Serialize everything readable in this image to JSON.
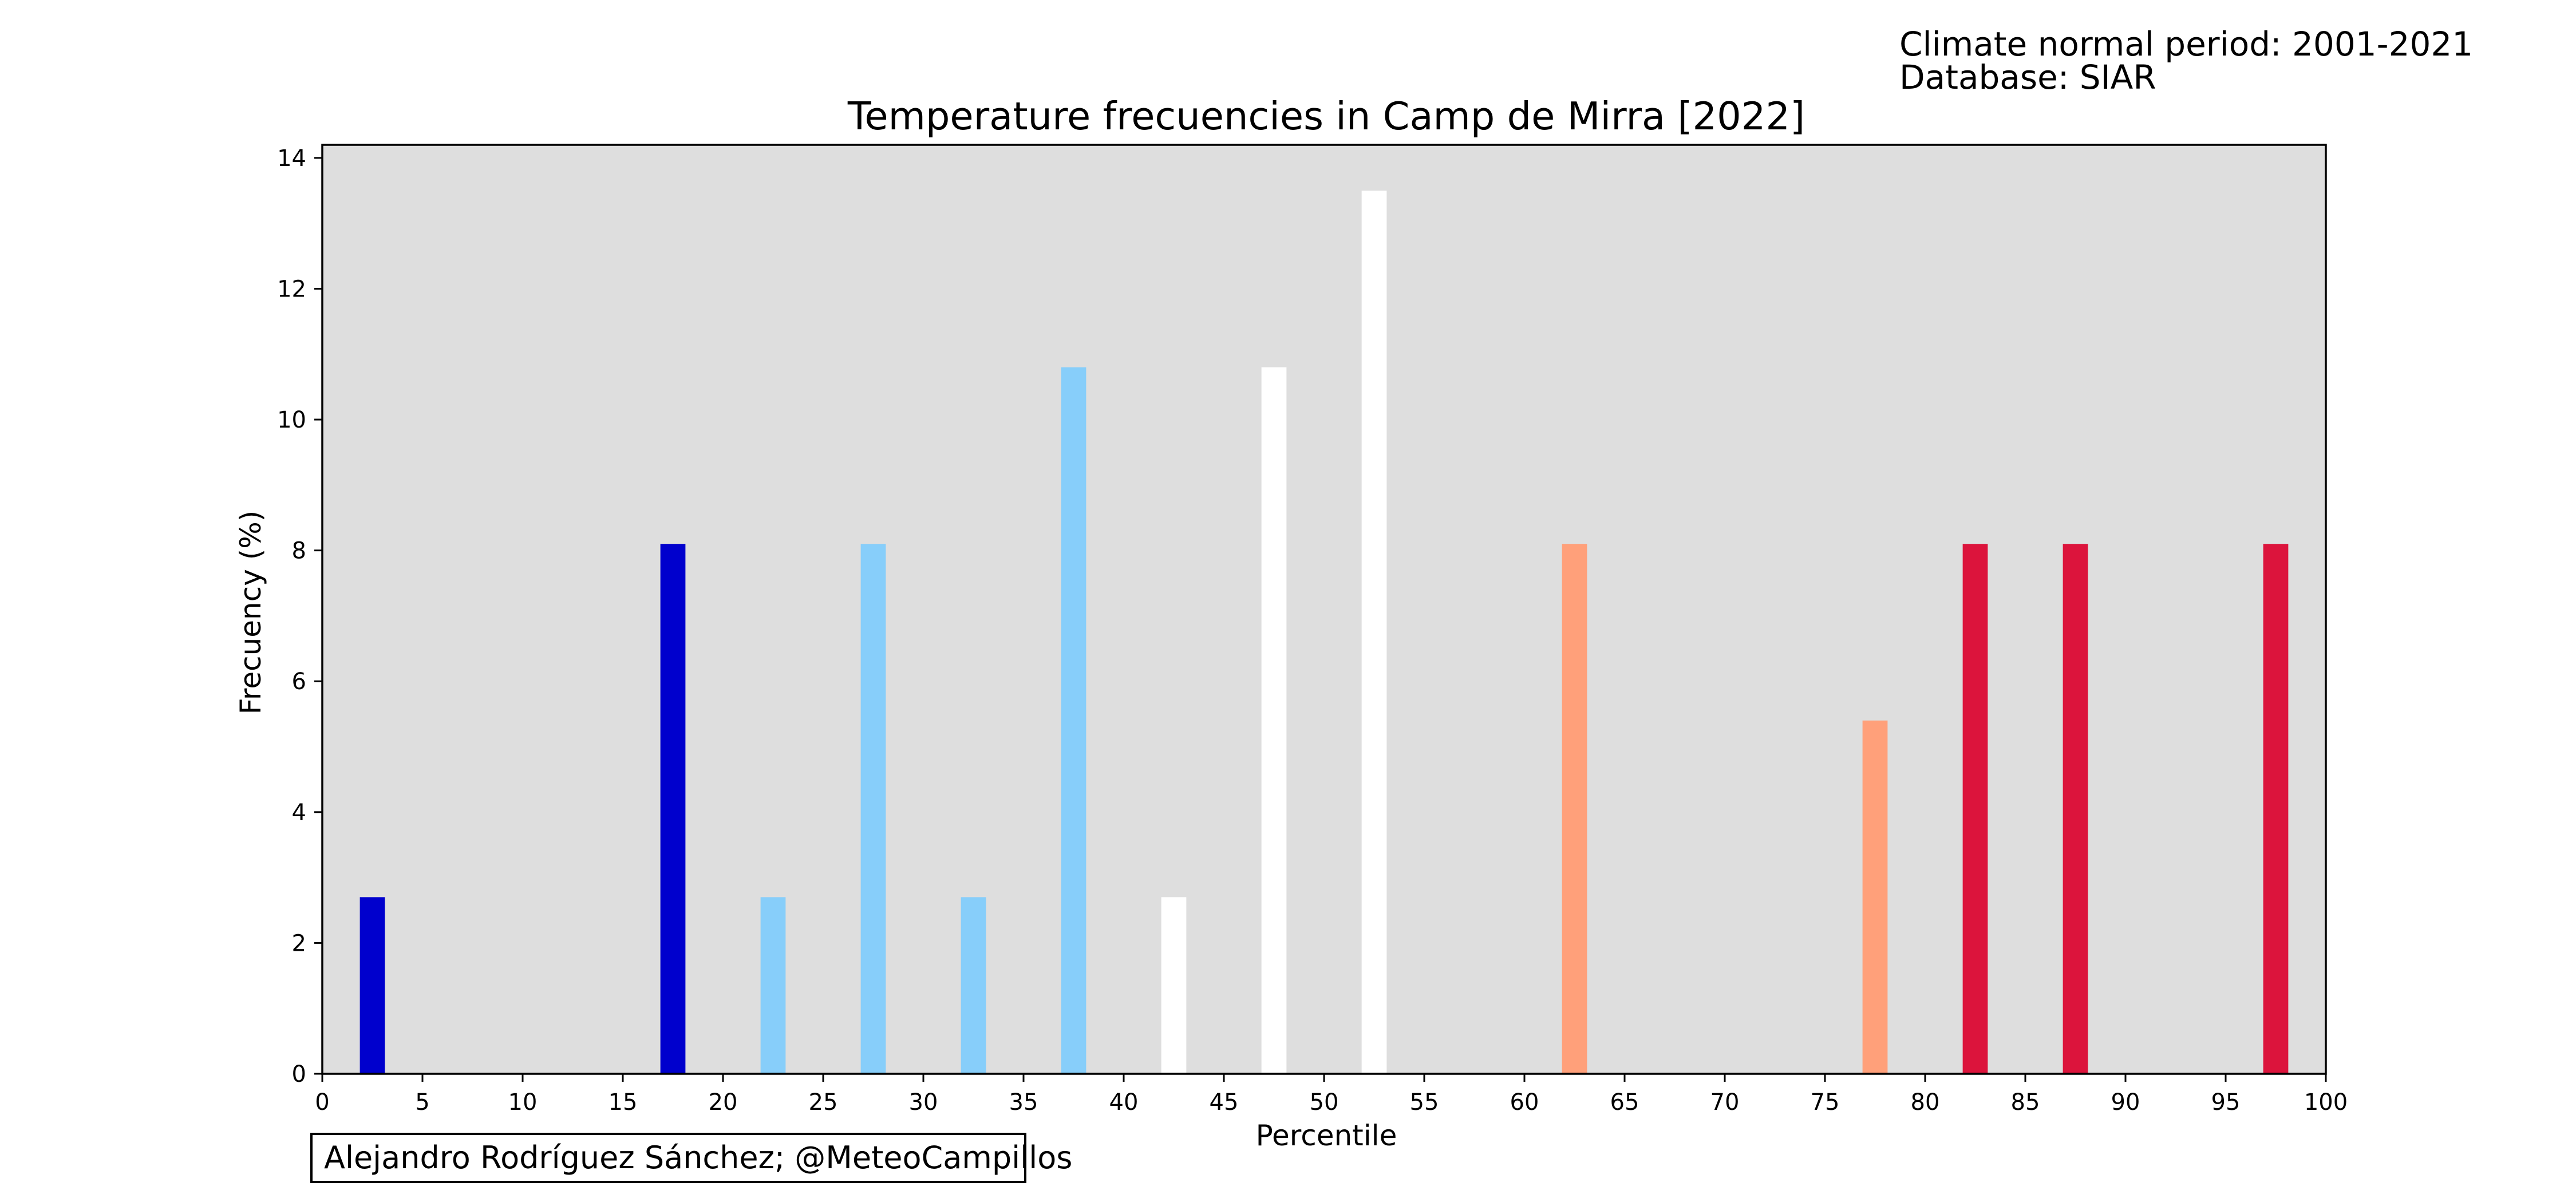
{
  "notes": {
    "climate_period": "Climate normal period: 2001-2021",
    "database": "Database: SIAR"
  },
  "credit": "Alejandro Rodríguez Sánchez; @MeteoCampillos",
  "chart_data": {
    "type": "bar",
    "title": "Temperature frecuencies in Camp de Mirra [2022]",
    "xlabel": "Percentile",
    "ylabel": "Frecuency (%)",
    "xlim": [
      0,
      100
    ],
    "ylim": [
      0,
      14.2
    ],
    "xticks": [
      0,
      5,
      10,
      15,
      20,
      25,
      30,
      35,
      40,
      45,
      50,
      55,
      60,
      65,
      70,
      75,
      80,
      85,
      90,
      95,
      100
    ],
    "yticks": [
      0,
      2,
      4,
      6,
      8,
      10,
      12,
      14
    ],
    "grid": false,
    "background_color": "#dedede",
    "bars": [
      {
        "x": 2.5,
        "value": 2.7,
        "color": "#0000cd"
      },
      {
        "x": 17.5,
        "value": 8.1,
        "color": "#0000cd"
      },
      {
        "x": 22.5,
        "value": 2.7,
        "color": "#87cefa"
      },
      {
        "x": 27.5,
        "value": 8.1,
        "color": "#87cefa"
      },
      {
        "x": 32.5,
        "value": 2.7,
        "color": "#87cefa"
      },
      {
        "x": 37.5,
        "value": 10.8,
        "color": "#87cefa"
      },
      {
        "x": 42.5,
        "value": 2.7,
        "color": "#ffffff"
      },
      {
        "x": 47.5,
        "value": 10.8,
        "color": "#ffffff"
      },
      {
        "x": 52.5,
        "value": 13.5,
        "color": "#ffffff"
      },
      {
        "x": 62.5,
        "value": 8.1,
        "color": "#ffa07a"
      },
      {
        "x": 77.5,
        "value": 5.4,
        "color": "#ffa07a"
      },
      {
        "x": 82.5,
        "value": 8.1,
        "color": "#dc143c"
      },
      {
        "x": 87.5,
        "value": 8.1,
        "color": "#dc143c"
      },
      {
        "x": 97.5,
        "value": 8.1,
        "color": "#dc143c"
      }
    ]
  }
}
